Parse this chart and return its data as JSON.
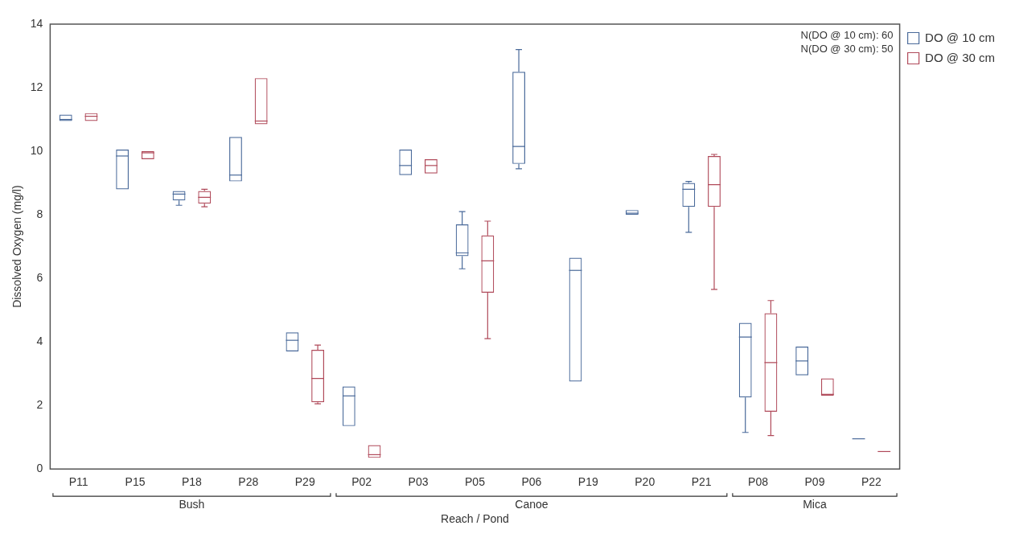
{
  "chart_data": {
    "type": "box",
    "xlabel": "Reach / Pond",
    "ylabel": "Dissolved Oxygen (mg/l)",
    "categories": [
      "P11",
      "P15",
      "P18",
      "P28",
      "P29",
      "P02",
      "P03",
      "P05",
      "P06",
      "P19",
      "P20",
      "P21",
      "P08",
      "P09",
      "P22"
    ],
    "ylim": [
      0,
      14
    ],
    "yticks": [
      0,
      2,
      4,
      6,
      8,
      10,
      12,
      14
    ],
    "grid": false,
    "legend": "top right",
    "series": [
      {
        "name": "DO @ 10 cm",
        "color": "#4a6a9a",
        "boxes": [
          {
            "low": 10.95,
            "q1": 10.95,
            "median": 11.0,
            "q3": 11.15,
            "high": 11.15
          },
          {
            "low": 8.8,
            "q1": 8.8,
            "median": 9.85,
            "q3": 10.05,
            "high": 10.05
          },
          {
            "low": 8.3,
            "q1": 8.45,
            "median": 8.65,
            "q3": 8.75,
            "high": 8.75
          },
          {
            "low": 9.05,
            "q1": 9.05,
            "median": 9.25,
            "q3": 10.45,
            "high": 10.45
          },
          {
            "low": 3.7,
            "q1": 3.7,
            "median": 4.05,
            "q3": 4.3,
            "high": 4.3
          },
          {
            "low": 1.35,
            "q1": 1.35,
            "median": 2.3,
            "q3": 2.6,
            "high": 2.6
          },
          {
            "low": 9.25,
            "q1": 9.25,
            "median": 9.55,
            "q3": 10.05,
            "high": 10.05
          },
          {
            "low": 6.3,
            "q1": 6.7,
            "median": 6.8,
            "q3": 7.7,
            "high": 8.1
          },
          {
            "low": 9.45,
            "q1": 9.6,
            "median": 10.15,
            "q3": 12.5,
            "high": 13.2
          },
          {
            "low": 2.75,
            "q1": 2.75,
            "median": 6.25,
            "q3": 6.65,
            "high": 6.65
          },
          {
            "low": 8.0,
            "q1": 8.0,
            "median": 8.05,
            "q3": 8.15,
            "high": 8.15
          },
          {
            "low": 7.45,
            "q1": 8.25,
            "median": 8.8,
            "q3": 9.0,
            "high": 9.05
          },
          {
            "low": 1.15,
            "q1": 2.25,
            "median": 4.15,
            "q3": 4.6,
            "high": 4.6
          },
          {
            "low": 2.95,
            "q1": 2.95,
            "median": 3.4,
            "q3": 3.85,
            "high": 3.85
          },
          {
            "low": 0.95,
            "q1": 0.95,
            "median": 0.95,
            "q3": 0.95,
            "high": 0.95
          }
        ]
      },
      {
        "name": "DO @ 30 cm",
        "color": "#b04a5a",
        "boxes": [
          {
            "low": 10.95,
            "q1": 10.95,
            "median": 11.1,
            "q3": 11.2,
            "high": 11.2
          },
          {
            "low": 9.75,
            "q1": 9.75,
            "median": 9.95,
            "q3": 10.0,
            "high": 10.0
          },
          {
            "low": 8.25,
            "q1": 8.35,
            "median": 8.55,
            "q3": 8.75,
            "high": 8.8
          },
          {
            "low": 10.85,
            "q1": 10.85,
            "median": 10.95,
            "q3": 12.3,
            "high": 12.3
          },
          {
            "low": 2.05,
            "q1": 2.1,
            "median": 2.85,
            "q3": 3.75,
            "high": 3.9
          },
          {
            "low": 0.35,
            "q1": 0.35,
            "median": 0.45,
            "q3": 0.75,
            "high": 0.75
          },
          {
            "low": 9.3,
            "q1": 9.3,
            "median": 9.55,
            "q3": 9.75,
            "high": 9.75
          },
          {
            "low": 4.1,
            "q1": 5.55,
            "median": 6.55,
            "q3": 7.35,
            "high": 7.8
          },
          null,
          null,
          null,
          {
            "low": 5.65,
            "q1": 8.25,
            "median": 8.95,
            "q3": 9.85,
            "high": 9.9
          },
          {
            "low": 1.05,
            "q1": 1.8,
            "median": 3.35,
            "q3": 4.9,
            "high": 5.3
          },
          {
            "low": 2.3,
            "q1": 2.3,
            "median": 2.35,
            "q3": 2.85,
            "high": 2.85
          },
          {
            "low": 0.55,
            "q1": 0.55,
            "median": 0.55,
            "q3": 0.55,
            "high": 0.55
          }
        ]
      }
    ],
    "annotations": [
      "N(DO @ 10 cm): 60",
      "N(DO @ 30 cm): 50",
      "Bush",
      "Canoe",
      "Mica"
    ]
  }
}
